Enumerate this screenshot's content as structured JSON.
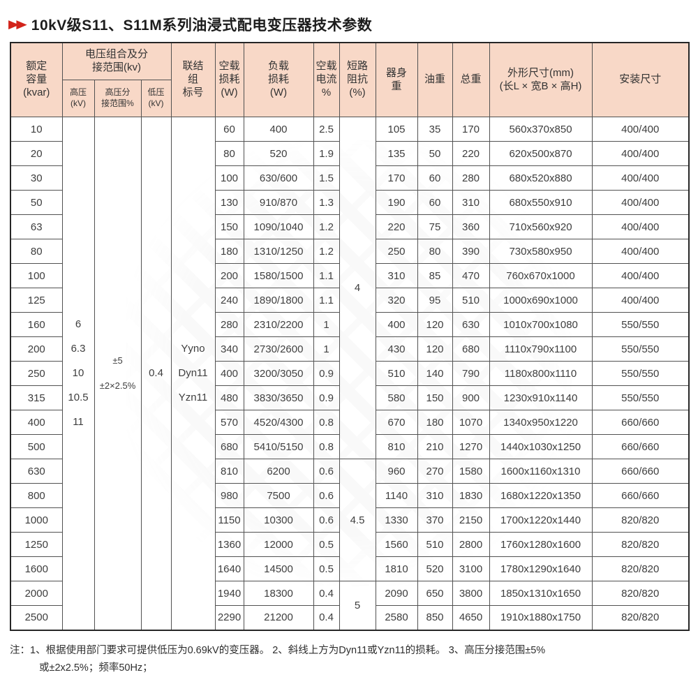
{
  "title": {
    "arrows_icon": "▶▶",
    "text": "10kV级S11、S11M系列油浸式配电变压器技术参数"
  },
  "colors": {
    "header_bg": "#f8d8c7",
    "grid_line": "#515151",
    "outer_border": "#262626",
    "accent_red": "#d2231a",
    "text": "#3d3d3d"
  },
  "table": {
    "headers": {
      "capacity": "额定\n容量\n(kvar)",
      "voltage_group": "电压组合及分\n接范围(kv)",
      "hv": "高压\n(kV)",
      "tap_range": "高压分\n接范围%",
      "lv": "低压\n(kV)",
      "connection": "联结\n组\n标号",
      "no_load_loss": "空载\n损耗\n(W)",
      "load_loss": "负载\n损耗\n(W)",
      "no_load_current": "空载\n电流\n%",
      "impedance": "短路\n阻抗\n(%)",
      "body_weight": "器身\n重",
      "oil_weight": "油重",
      "total_weight": "总重",
      "dimensions": "外形尺寸(mm)\n(长L × 宽B × 高H)",
      "install": "安装尺寸"
    },
    "merged": {
      "hv_values": [
        "6",
        "6.3",
        "10",
        "10.5",
        "11"
      ],
      "tap_lines": [
        "±5",
        "±2×2.5%"
      ],
      "lv_value": "0.4",
      "connection_symbols": [
        "Yyno",
        "Dyn11",
        "Yzn11"
      ],
      "impedance_groups": [
        {
          "value": "4",
          "span": 14
        },
        {
          "value": "4.5",
          "span": 5
        },
        {
          "value": "5",
          "span": 2
        }
      ]
    },
    "rows": [
      {
        "capacity": "10",
        "no_load_loss": "60",
        "load_loss": "400",
        "no_load_current": "2.5",
        "body_weight": "105",
        "oil_weight": "35",
        "total_weight": "170",
        "dimensions": "560x370x850",
        "install": "400/400"
      },
      {
        "capacity": "20",
        "no_load_loss": "80",
        "load_loss": "520",
        "no_load_current": "1.9",
        "body_weight": "135",
        "oil_weight": "50",
        "total_weight": "220",
        "dimensions": "620x500x870",
        "install": "400/400"
      },
      {
        "capacity": "30",
        "no_load_loss": "100",
        "load_loss": "630/600",
        "no_load_current": "1.5",
        "body_weight": "170",
        "oil_weight": "60",
        "total_weight": "280",
        "dimensions": "680x520x880",
        "install": "400/400"
      },
      {
        "capacity": "50",
        "no_load_loss": "130",
        "load_loss": "910/870",
        "no_load_current": "1.3",
        "body_weight": "190",
        "oil_weight": "60",
        "total_weight": "310",
        "dimensions": "680x550x910",
        "install": "400/400"
      },
      {
        "capacity": "63",
        "no_load_loss": "150",
        "load_loss": "1090/1040",
        "no_load_current": "1.2",
        "body_weight": "220",
        "oil_weight": "75",
        "total_weight": "360",
        "dimensions": "710x560x920",
        "install": "400/400"
      },
      {
        "capacity": "80",
        "no_load_loss": "180",
        "load_loss": "1310/1250",
        "no_load_current": "1.2",
        "body_weight": "250",
        "oil_weight": "80",
        "total_weight": "390",
        "dimensions": "730x580x950",
        "install": "400/400"
      },
      {
        "capacity": "100",
        "no_load_loss": "200",
        "load_loss": "1580/1500",
        "no_load_current": "1.1",
        "body_weight": "310",
        "oil_weight": "85",
        "total_weight": "470",
        "dimensions": "760x670x1000",
        "install": "400/400"
      },
      {
        "capacity": "125",
        "no_load_loss": "240",
        "load_loss": "1890/1800",
        "no_load_current": "1.1",
        "body_weight": "320",
        "oil_weight": "95",
        "total_weight": "510",
        "dimensions": "1000x690x1000",
        "install": "400/400"
      },
      {
        "capacity": "160",
        "no_load_loss": "280",
        "load_loss": "2310/2200",
        "no_load_current": "1",
        "body_weight": "400",
        "oil_weight": "120",
        "total_weight": "630",
        "dimensions": "1010x700x1080",
        "install": "550/550"
      },
      {
        "capacity": "200",
        "no_load_loss": "340",
        "load_loss": "2730/2600",
        "no_load_current": "1",
        "body_weight": "430",
        "oil_weight": "120",
        "total_weight": "680",
        "dimensions": "1110x790x1100",
        "install": "550/550"
      },
      {
        "capacity": "250",
        "no_load_loss": "400",
        "load_loss": "3200/3050",
        "no_load_current": "0.9",
        "body_weight": "510",
        "oil_weight": "140",
        "total_weight": "790",
        "dimensions": "1180x800x1110",
        "install": "550/550"
      },
      {
        "capacity": "315",
        "no_load_loss": "480",
        "load_loss": "3830/3650",
        "no_load_current": "0.9",
        "body_weight": "580",
        "oil_weight": "150",
        "total_weight": "900",
        "dimensions": "1230x910x1140",
        "install": "550/550"
      },
      {
        "capacity": "400",
        "no_load_loss": "570",
        "load_loss": "4520/4300",
        "no_load_current": "0.8",
        "body_weight": "670",
        "oil_weight": "180",
        "total_weight": "1070",
        "dimensions": "1340x950x1220",
        "install": "660/660"
      },
      {
        "capacity": "500",
        "no_load_loss": "680",
        "load_loss": "5410/5150",
        "no_load_current": "0.8",
        "body_weight": "810",
        "oil_weight": "210",
        "total_weight": "1270",
        "dimensions": "1440x1030x1250",
        "install": "660/660"
      },
      {
        "capacity": "630",
        "no_load_loss": "810",
        "load_loss": "6200",
        "no_load_current": "0.6",
        "body_weight": "960",
        "oil_weight": "270",
        "total_weight": "1580",
        "dimensions": "1600x1160x1310",
        "install": "660/660"
      },
      {
        "capacity": "800",
        "no_load_loss": "980",
        "load_loss": "7500",
        "no_load_current": "0.6",
        "body_weight": "1140",
        "oil_weight": "310",
        "total_weight": "1830",
        "dimensions": "1680x1220x1350",
        "install": "660/660"
      },
      {
        "capacity": "1000",
        "no_load_loss": "1150",
        "load_loss": "10300",
        "no_load_current": "0.6",
        "body_weight": "1330",
        "oil_weight": "370",
        "total_weight": "2150",
        "dimensions": "1700x1220x1440",
        "install": "820/820"
      },
      {
        "capacity": "1250",
        "no_load_loss": "1360",
        "load_loss": "12000",
        "no_load_current": "0.5",
        "body_weight": "1560",
        "oil_weight": "510",
        "total_weight": "2800",
        "dimensions": "1760x1280x1600",
        "install": "820/820"
      },
      {
        "capacity": "1600",
        "no_load_loss": "1640",
        "load_loss": "14500",
        "no_load_current": "0.5",
        "body_weight": "1810",
        "oil_weight": "520",
        "total_weight": "3100",
        "dimensions": "1780x1290x1640",
        "install": "820/820"
      },
      {
        "capacity": "2000",
        "no_load_loss": "1940",
        "load_loss": "18300",
        "no_load_current": "0.4",
        "body_weight": "2090",
        "oil_weight": "650",
        "total_weight": "3800",
        "dimensions": "1850x1310x1650",
        "install": "820/820"
      },
      {
        "capacity": "2500",
        "no_load_loss": "2290",
        "load_loss": "21200",
        "no_load_current": "0.4",
        "body_weight": "2580",
        "oil_weight": "850",
        "total_weight": "4650",
        "dimensions": "1910x1880x1750",
        "install": "820/820"
      }
    ]
  },
  "notes": {
    "line1": "注：1、根据使用部门要求可提供低压为0.69kV的变压器。 2、斜线上方为Dyn11或Yzn11的损耗。 3、高压分接范围±5%",
    "line2": "或±2x2.5%；频率50Hz；"
  }
}
